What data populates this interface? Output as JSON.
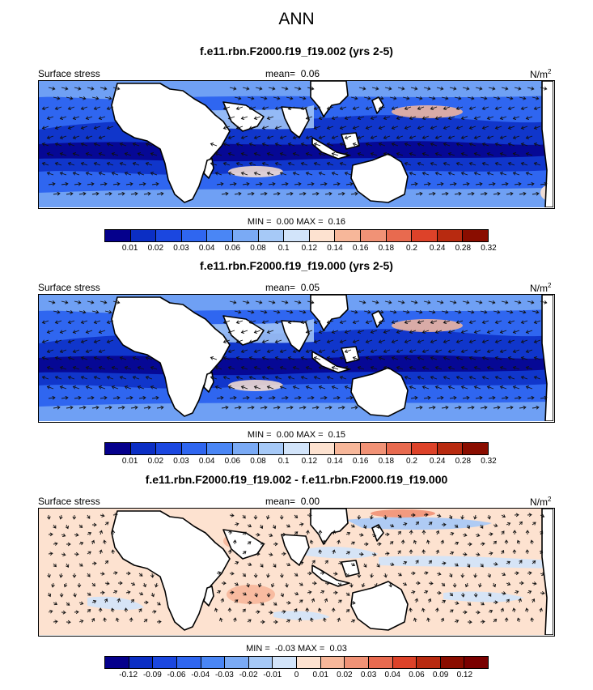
{
  "chart_data": {
    "type": "heatmap",
    "title": "ANN",
    "panels": [
      {
        "title": "f.e11.rbn.F2000.f19_f19.002 (yrs 2-5)",
        "left_label": "Surface stress",
        "mean_label": "mean=",
        "mean_value": "0.06",
        "units": "N/m",
        "units_exp": "2",
        "min_label": "MIN =",
        "min_value": "0.00",
        "max_label": "MAX =",
        "max_value": "0.16",
        "levels": [
          "0.01",
          "0.02",
          "0.03",
          "0.04",
          "0.06",
          "0.08",
          "0.1",
          "0.12",
          "0.14",
          "0.16",
          "0.18",
          "0.2",
          "0.24",
          "0.28",
          "0.32"
        ],
        "colors": [
          "#05008c",
          "#0b2ec4",
          "#1b47e0",
          "#2f66f0",
          "#4a86f5",
          "#7aaaf5",
          "#a6c9f7",
          "#d2e4fa",
          "#fde2d0",
          "#f7b79a",
          "#f19276",
          "#e86a4f",
          "#dd4229",
          "#b82a10",
          "#8a0d00"
        ],
        "vector_field": "surface-stress",
        "pattern": "mean"
      },
      {
        "title": "f.e11.rbn.F2000.f19_f19.000 (yrs 2-5)",
        "left_label": "Surface stress",
        "mean_label": "mean=",
        "mean_value": "0.05",
        "units": "N/m",
        "units_exp": "2",
        "min_label": "MIN =",
        "min_value": "0.00",
        "max_label": "MAX =",
        "max_value": "0.15",
        "levels": [
          "0.01",
          "0.02",
          "0.03",
          "0.04",
          "0.06",
          "0.08",
          "0.1",
          "0.12",
          "0.14",
          "0.16",
          "0.18",
          "0.2",
          "0.24",
          "0.28",
          "0.32"
        ],
        "colors": [
          "#05008c",
          "#0b2ec4",
          "#1b47e0",
          "#2f66f0",
          "#4a86f5",
          "#7aaaf5",
          "#a6c9f7",
          "#d2e4fa",
          "#fde2d0",
          "#f7b79a",
          "#f19276",
          "#e86a4f",
          "#dd4229",
          "#b82a10",
          "#8a0d00"
        ],
        "vector_field": "surface-stress",
        "pattern": "mean"
      },
      {
        "title": "f.e11.rbn.F2000.f19_f19.002 - f.e11.rbn.F2000.f19_f19.000",
        "left_label": "Surface stress",
        "mean_label": "mean=",
        "mean_value": "0.00",
        "units": "N/m",
        "units_exp": "2",
        "min_label": "MIN =",
        "min_value": "-0.03",
        "max_label": "MAX =",
        "max_value": "0.03",
        "levels": [
          "-0.12",
          "-0.09",
          "-0.06",
          "-0.04",
          "-0.03",
          "-0.02",
          "-0.01",
          "0",
          "0.01",
          "0.02",
          "0.03",
          "0.04",
          "0.06",
          "0.09",
          "0.12"
        ],
        "colors": [
          "#05008c",
          "#0b2ec4",
          "#1b47e0",
          "#2f66f0",
          "#4a86f5",
          "#7aaaf5",
          "#a6c9f7",
          "#d2e4fa",
          "#fde2d0",
          "#f7b79a",
          "#f19276",
          "#e86a4f",
          "#dd4229",
          "#b82a10",
          "#8a0d00",
          "#7a0000"
        ],
        "vector_field": "surface-stress-difference",
        "pattern": "diff"
      }
    ]
  }
}
